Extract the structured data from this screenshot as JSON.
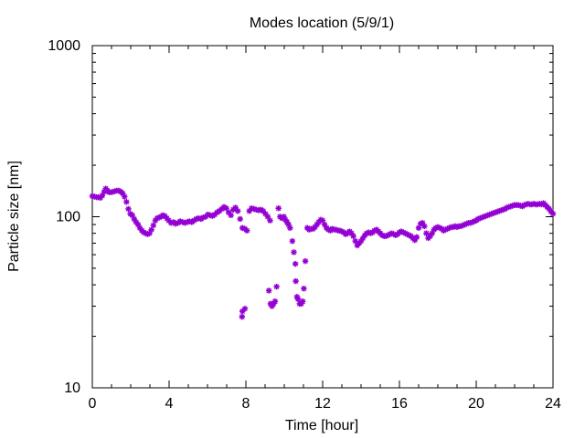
{
  "chart_data": {
    "type": "scatter",
    "title": "Modes location (5/9/1)",
    "xlabel": "Time [hour]",
    "ylabel": "Particle size [nm]",
    "xlim": [
      0,
      24
    ],
    "ylim": [
      10,
      1000
    ],
    "y_scale": "log",
    "grid": false,
    "legend": "none",
    "x_ticks": [
      0,
      4,
      8,
      12,
      16,
      20,
      24
    ],
    "y_ticks": [
      10,
      100,
      1000
    ],
    "x_tick_labels": [
      "0",
      "4",
      "8",
      "12",
      "16",
      "20",
      "24"
    ],
    "y_tick_labels": [
      "10",
      "100",
      "1000"
    ],
    "marker_color": "#9400d3",
    "series": [
      {
        "points": [
          [
            0.0,
            132
          ],
          [
            0.12,
            131
          ],
          [
            0.22,
            130
          ],
          [
            0.32,
            130
          ],
          [
            0.42,
            129
          ],
          [
            0.52,
            133
          ],
          [
            0.62,
            140
          ],
          [
            0.7,
            146
          ],
          [
            0.78,
            142
          ],
          [
            0.88,
            139
          ],
          [
            0.98,
            139
          ],
          [
            1.08,
            140
          ],
          [
            1.18,
            141
          ],
          [
            1.28,
            142
          ],
          [
            1.38,
            142
          ],
          [
            1.48,
            140
          ],
          [
            1.58,
            137
          ],
          [
            1.68,
            131
          ],
          [
            1.78,
            122
          ],
          [
            1.88,
            111
          ],
          [
            1.98,
            104
          ],
          [
            2.08,
            102
          ],
          [
            2.18,
            97
          ],
          [
            2.28,
            93
          ],
          [
            2.38,
            90
          ],
          [
            2.48,
            86
          ],
          [
            2.58,
            83
          ],
          [
            2.68,
            81
          ],
          [
            2.78,
            80
          ],
          [
            2.88,
            79
          ],
          [
            2.98,
            80
          ],
          [
            3.08,
            84
          ],
          [
            3.18,
            89
          ],
          [
            3.28,
            95
          ],
          [
            3.38,
            98
          ],
          [
            3.48,
            99
          ],
          [
            3.58,
            100
          ],
          [
            3.68,
            102
          ],
          [
            3.78,
            101
          ],
          [
            3.88,
            98
          ],
          [
            3.98,
            95
          ],
          [
            4.1,
            92
          ],
          [
            4.22,
            93
          ],
          [
            4.34,
            91
          ],
          [
            4.46,
            92
          ],
          [
            4.58,
            94
          ],
          [
            4.7,
            93
          ],
          [
            4.82,
            92
          ],
          [
            4.94,
            93
          ],
          [
            5.06,
            94
          ],
          [
            5.18,
            93
          ],
          [
            5.3,
            95
          ],
          [
            5.42,
            97
          ],
          [
            5.54,
            98
          ],
          [
            5.66,
            97
          ],
          [
            5.78,
            99
          ],
          [
            5.9,
            100
          ],
          [
            6.02,
            103
          ],
          [
            6.14,
            102
          ],
          [
            6.26,
            101
          ],
          [
            6.38,
            103
          ],
          [
            6.5,
            106
          ],
          [
            6.62,
            108
          ],
          [
            6.74,
            111
          ],
          [
            6.86,
            114
          ],
          [
            6.98,
            112
          ],
          [
            7.1,
            106
          ],
          [
            7.22,
            102
          ],
          [
            7.34,
            110
          ],
          [
            7.46,
            113
          ],
          [
            7.58,
            108
          ],
          [
            7.7,
            97
          ],
          [
            7.82,
            86
          ],
          [
            7.94,
            85
          ],
          [
            8.06,
            83
          ],
          [
            8.18,
            108
          ],
          [
            8.3,
            112
          ],
          [
            8.42,
            111
          ],
          [
            8.54,
            110
          ],
          [
            8.66,
            109
          ],
          [
            8.78,
            110
          ],
          [
            8.9,
            108
          ],
          [
            9.02,
            104
          ],
          [
            9.14,
            100
          ],
          [
            9.26,
            95
          ],
          [
            9.7,
            112
          ],
          [
            9.78,
            100
          ],
          [
            9.88,
            98
          ],
          [
            9.98,
            100
          ],
          [
            10.06,
            96
          ],
          [
            10.14,
            93
          ],
          [
            10.22,
            90
          ],
          [
            10.3,
            86
          ],
          [
            10.42,
            72
          ],
          [
            10.5,
            62
          ],
          [
            10.58,
            53
          ],
          [
            7.8,
            26
          ],
          [
            7.82,
            28
          ],
          [
            7.95,
            29
          ],
          [
            9.2,
            37
          ],
          [
            9.28,
            31
          ],
          [
            9.36,
            30
          ],
          [
            9.44,
            31
          ],
          [
            9.52,
            32
          ],
          [
            9.6,
            39
          ],
          [
            10.6,
            42
          ],
          [
            10.66,
            34
          ],
          [
            10.72,
            33
          ],
          [
            10.8,
            31
          ],
          [
            10.88,
            31
          ],
          [
            10.96,
            32
          ],
          [
            11.02,
            38
          ],
          [
            11.1,
            55
          ],
          [
            11.2,
            86
          ],
          [
            11.3,
            84
          ],
          [
            11.4,
            85
          ],
          [
            11.5,
            85
          ],
          [
            11.6,
            87
          ],
          [
            11.7,
            90
          ],
          [
            11.8,
            93
          ],
          [
            11.9,
            96
          ],
          [
            12.0,
            95
          ],
          [
            12.1,
            90
          ],
          [
            12.2,
            86
          ],
          [
            12.3,
            84
          ],
          [
            12.4,
            83
          ],
          [
            12.5,
            85
          ],
          [
            12.6,
            84
          ],
          [
            12.7,
            84
          ],
          [
            12.8,
            83
          ],
          [
            12.9,
            83
          ],
          [
            13.0,
            82
          ],
          [
            13.1,
            81
          ],
          [
            13.2,
            79
          ],
          [
            13.3,
            80
          ],
          [
            13.4,
            82
          ],
          [
            13.5,
            80
          ],
          [
            13.6,
            77
          ],
          [
            13.7,
            72
          ],
          [
            13.8,
            68
          ],
          [
            13.9,
            70
          ],
          [
            14.0,
            72
          ],
          [
            14.1,
            75
          ],
          [
            14.2,
            78
          ],
          [
            14.3,
            80
          ],
          [
            14.4,
            81
          ],
          [
            14.5,
            80
          ],
          [
            14.6,
            81
          ],
          [
            14.7,
            83
          ],
          [
            14.8,
            84
          ],
          [
            14.9,
            82
          ],
          [
            15.0,
            80
          ],
          [
            15.1,
            78
          ],
          [
            15.2,
            77
          ],
          [
            15.3,
            77
          ],
          [
            15.4,
            78
          ],
          [
            15.5,
            79
          ],
          [
            15.6,
            80
          ],
          [
            15.7,
            79
          ],
          [
            15.8,
            78
          ],
          [
            15.9,
            79
          ],
          [
            16.0,
            81
          ],
          [
            16.1,
            82
          ],
          [
            16.2,
            81
          ],
          [
            16.3,
            80
          ],
          [
            16.4,
            79
          ],
          [
            16.5,
            78
          ],
          [
            16.6,
            77
          ],
          [
            16.7,
            75
          ],
          [
            16.8,
            73
          ],
          [
            16.9,
            76
          ],
          [
            17.0,
            86
          ],
          [
            17.1,
            91
          ],
          [
            17.2,
            92
          ],
          [
            17.3,
            88
          ],
          [
            17.4,
            80
          ],
          [
            17.5,
            75
          ],
          [
            17.6,
            77
          ],
          [
            17.7,
            80
          ],
          [
            17.8,
            84
          ],
          [
            17.9,
            86
          ],
          [
            18.0,
            87
          ],
          [
            18.1,
            86
          ],
          [
            18.2,
            85
          ],
          [
            18.3,
            83
          ],
          [
            18.4,
            84
          ],
          [
            18.5,
            85
          ],
          [
            18.6,
            86
          ],
          [
            18.7,
            87
          ],
          [
            18.8,
            87
          ],
          [
            18.9,
            88
          ],
          [
            19.0,
            87
          ],
          [
            19.1,
            88
          ],
          [
            19.2,
            88
          ],
          [
            19.3,
            89
          ],
          [
            19.4,
            90
          ],
          [
            19.5,
            91
          ],
          [
            19.6,
            92
          ],
          [
            19.7,
            92
          ],
          [
            19.8,
            93
          ],
          [
            19.9,
            94
          ],
          [
            20.0,
            95
          ],
          [
            20.1,
            97
          ],
          [
            20.2,
            98
          ],
          [
            20.3,
            99
          ],
          [
            20.4,
            100
          ],
          [
            20.5,
            101
          ],
          [
            20.6,
            102
          ],
          [
            20.7,
            103
          ],
          [
            20.8,
            104
          ],
          [
            20.9,
            105
          ],
          [
            21.0,
            106
          ],
          [
            21.1,
            107
          ],
          [
            21.2,
            108
          ],
          [
            21.3,
            109
          ],
          [
            21.4,
            110
          ],
          [
            21.5,
            111
          ],
          [
            21.6,
            113
          ],
          [
            21.7,
            114
          ],
          [
            21.8,
            115
          ],
          [
            21.9,
            116
          ],
          [
            22.0,
            117
          ],
          [
            22.1,
            117
          ],
          [
            22.2,
            117
          ],
          [
            22.3,
            116
          ],
          [
            22.4,
            115
          ],
          [
            22.5,
            117
          ],
          [
            22.6,
            118
          ],
          [
            22.7,
            119
          ],
          [
            22.8,
            118
          ],
          [
            22.9,
            118
          ],
          [
            23.0,
            119
          ],
          [
            23.1,
            118
          ],
          [
            23.2,
            118
          ],
          [
            23.3,
            119
          ],
          [
            23.4,
            118
          ],
          [
            23.5,
            120
          ],
          [
            23.6,
            117
          ],
          [
            23.7,
            114
          ],
          [
            23.8,
            111
          ],
          [
            23.9,
            107
          ],
          [
            24.0,
            104
          ]
        ]
      }
    ]
  }
}
